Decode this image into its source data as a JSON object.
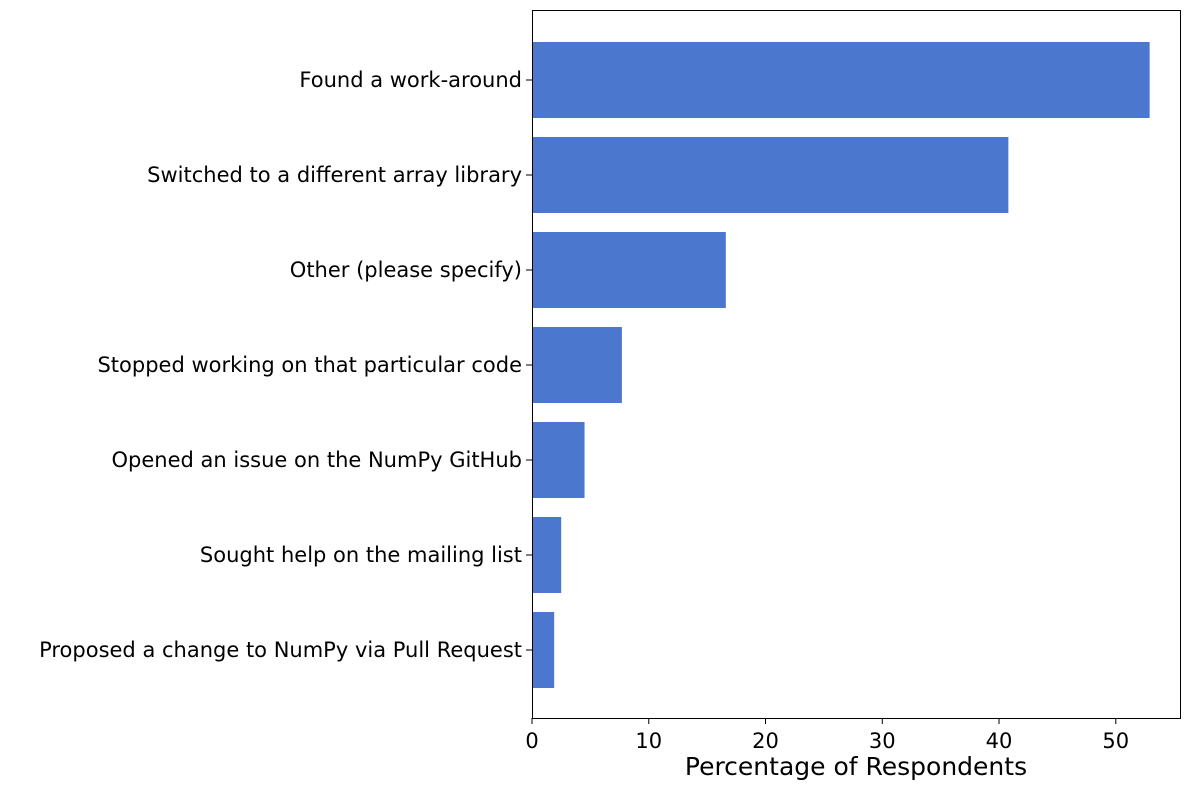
{
  "chart_data": {
    "type": "bar",
    "orientation": "horizontal",
    "title": "",
    "xlabel": "Percentage of Respondents",
    "ylabel": "",
    "categories": [
      "Found a work-around",
      "Switched to a different array library",
      "Other (please specify)",
      "Stopped working on that particular code",
      "Opened an issue on the NumPy GitHub",
      "Sought help on the mailing list",
      "Proposed a change to NumPy via Pull Request"
    ],
    "values": [
      52.9,
      40.8,
      16.6,
      7.7,
      4.5,
      2.5,
      1.9
    ],
    "xlim": [
      0,
      55.5
    ],
    "xticks": [
      0,
      10,
      20,
      30,
      40,
      50
    ],
    "grid": false,
    "legend": "none",
    "bar_color": "#4C77CF"
  }
}
